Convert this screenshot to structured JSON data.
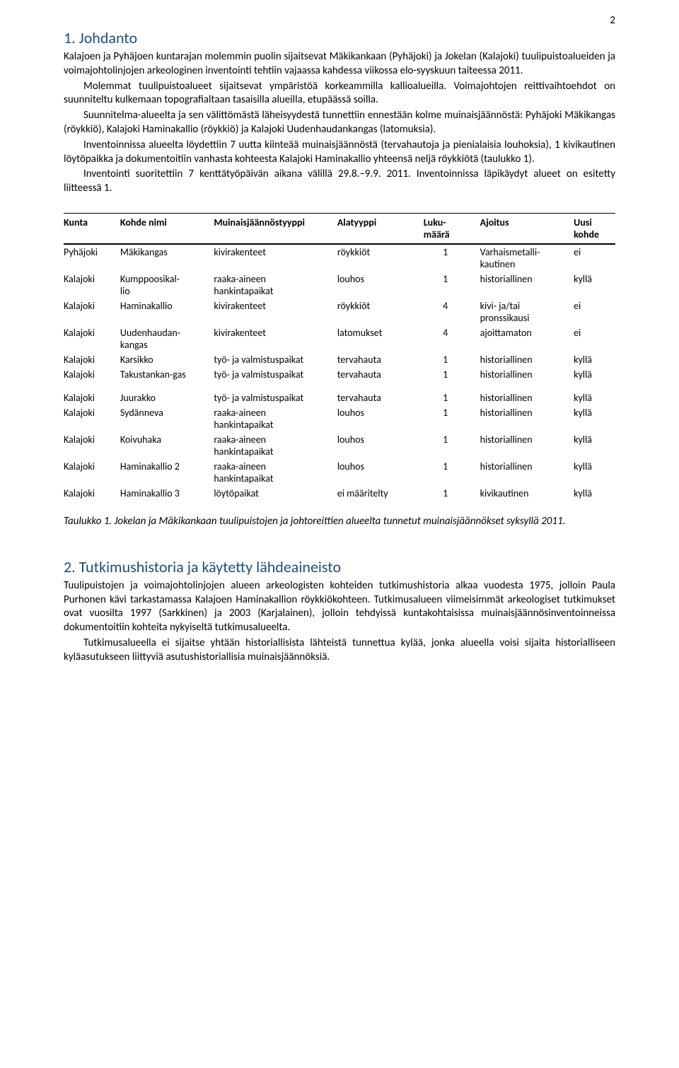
{
  "pageNumber": "2",
  "section1": {
    "heading": "1. Johdanto",
    "p1": "Kalajoen ja Pyhäjoen kuntarajan molemmin puolin sijaitsevat Mäkikankaan (Pyhäjoki) ja Jokelan (Kalajoki) tuulipuistoalueiden ja voimajohtolinjojen arkeologinen inventointi tehtiin vajaassa kahdessa viikossa elo-syyskuun taiteessa 2011.",
    "p2": "Molemmat tuulipuistoalueet sijaitsevat ympäristöä korkeammilla kallioalueilla. Voimajohtojen reittivaihtoehdot on suunniteltu kulkemaan topografialtaan tasaisilla alueilla, etupäässä soilla.",
    "p3": "Suunnitelma-alueelta ja sen välittömästä läheisyydestä tunnettiin ennestään kolme muinaisjäännöstä: Pyhäjoki Mäkikangas (röykkiö), Kalajoki Haminakallio (röykkiö) ja Kalajoki Uudenhaudankangas (latomuksia).",
    "p4": "Inventoinnissa alueelta löydettiin 7 uutta kiinteää muinaisjäännöstä (tervahautoja ja pienialaisia louhoksia), 1 kivikautinen löytöpaikka ja dokumentoitiin vanhasta kohteesta Kalajoki Haminakallio yhteensä neljä röykkiötä (taulukko 1).",
    "p5": "Inventointi suoritettiin 7 kenttätyöpäivän aikana välillä 29.8.–9.9. 2011. Inventoinnissa läpikäydyt alueet on esitetty liitteessä 1."
  },
  "table": {
    "headers": {
      "kunta": "Kunta",
      "kohde": "Kohde nimi",
      "tyyppi": "Muinaisjäännöstyyppi",
      "alatyyppi": "Alatyyppi",
      "luku1": "Luku-",
      "luku2": "määrä",
      "ajoitus": "Ajoitus",
      "uusi1": "Uusi",
      "uusi2": "kohde"
    },
    "rows": [
      {
        "kunta": "Pyhäjoki",
        "kohde": "Mäkikangas",
        "tyyppi": "kivirakenteet",
        "ala": "röykkiöt",
        "luku": "1",
        "ajoitus": "Varhaismetalli-kautinen",
        "uusi": "ei"
      },
      {
        "kunta": "Kalajoki",
        "kohde": "Kumppoosikal-lio",
        "tyyppi": "raaka-aineen hankintapaikat",
        "ala": "louhos",
        "luku": "1",
        "ajoitus": "historiallinen",
        "uusi": "kyllä"
      },
      {
        "kunta": "Kalajoki",
        "kohde": "Haminakallio",
        "tyyppi": "kivirakenteet",
        "ala": "röykkiöt",
        "luku": "4",
        "ajoitus": "kivi- ja/tai pronssikausi",
        "uusi": "ei"
      },
      {
        "kunta": "Kalajoki",
        "kohde": "Uudenhaudan-kangas",
        "tyyppi": "kivirakenteet",
        "ala": "latomukset",
        "luku": "4",
        "ajoitus": "ajoittamaton",
        "uusi": "ei"
      },
      {
        "kunta": "Kalajoki",
        "kohde": "Karsikko",
        "tyyppi": "työ- ja valmistuspaikat",
        "ala": "tervahauta",
        "luku": "1",
        "ajoitus": "historiallinen",
        "uusi": "kyllä"
      },
      {
        "kunta": "Kalajoki",
        "kohde": "Takustankan-gas",
        "tyyppi": "työ- ja valmistuspaikat",
        "ala": "tervahauta",
        "luku": "1",
        "ajoitus": "historiallinen",
        "uusi": "kyllä"
      }
    ],
    "rows2": [
      {
        "kunta": "Kalajoki",
        "kohde": "Juurakko",
        "tyyppi": "työ- ja valmistuspaikat",
        "ala": "tervahauta",
        "luku": "1",
        "ajoitus": "historiallinen",
        "uusi": "kyllä"
      },
      {
        "kunta": "Kalajoki",
        "kohde": "Sydänneva",
        "tyyppi": "raaka-aineen hankintapaikat",
        "ala": "louhos",
        "luku": "1",
        "ajoitus": "historiallinen",
        "uusi": "kyllä"
      },
      {
        "kunta": "Kalajoki",
        "kohde": "Koivuhaka",
        "tyyppi": "raaka-aineen hankintapaikat",
        "ala": "louhos",
        "luku": "1",
        "ajoitus": "historiallinen",
        "uusi": "kyllä"
      },
      {
        "kunta": "Kalajoki",
        "kohde": "Haminakallio 2",
        "tyyppi": "raaka-aineen hankintapaikat",
        "ala": "louhos",
        "luku": "1",
        "ajoitus": "historiallinen",
        "uusi": "kyllä"
      },
      {
        "kunta": "Kalajoki",
        "kohde": "Haminakallio 3",
        "tyyppi": "löytöpaikat",
        "ala": "ei määritelty",
        "luku": "1",
        "ajoitus": "kivikautinen",
        "uusi": "kyllä"
      }
    ]
  },
  "caption": "Taulukko 1. Jokelan ja Mäkikankaan tuulipuistojen ja johtoreittien alueelta tunnetut muinaisjäännökset syksyllä 2011.",
  "section2": {
    "heading": "2. Tutkimushistoria ja käytetty lähdeaineisto",
    "p1": "Tuulipuistojen ja voimajohtolinjojen alueen arkeologisten kohteiden tutkimushistoria alkaa vuodesta 1975, jolloin Paula Purhonen kävi tarkastamassa Kalajoen Haminakallion röykkiökohteen. Tutkimusalueen viimeisimmät arkeologiset tutkimukset ovat vuosilta 1997 (Sarkkinen) ja 2003 (Karjalainen), jolloin tehdyissä kuntakohtaisissa muinaisjäännösinventoinneissa dokumentoitiin kohteita nykyiseltä tutkimusalueelta.",
    "p2": "Tutkimusalueella ei sijaitse yhtään historiallisista lähteistä tunnettua kylää, jonka alueella voisi sijaita historialliseen kyläasutukseen liittyviä asutushistoriallisia muinaisjäännöksiä."
  }
}
